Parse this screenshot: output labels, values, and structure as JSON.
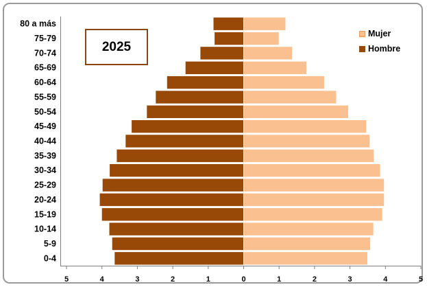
{
  "chart_data": {
    "type": "bar",
    "orientation": "horizontal-pyramid",
    "title": "2025",
    "categories": [
      "0-4",
      "5-9",
      "10-14",
      "15-19",
      "20-24",
      "25-29",
      "30-34",
      "35-39",
      "40-44",
      "45-49",
      "50-54",
      "55-59",
      "60-64",
      "65-69",
      "70-74",
      "75-79",
      "80 a más"
    ],
    "series": [
      {
        "name": "Mujer",
        "side": "right",
        "color": "#fac090",
        "values": [
          3.5,
          3.58,
          3.67,
          3.92,
          3.97,
          3.97,
          3.86,
          3.68,
          3.56,
          3.47,
          2.96,
          2.62,
          2.28,
          1.78,
          1.38,
          1.0,
          1.19
        ]
      },
      {
        "name": "Hombre",
        "side": "left",
        "color": "#984807",
        "values": [
          3.65,
          3.72,
          3.8,
          4.01,
          4.07,
          3.99,
          3.79,
          3.59,
          3.34,
          3.17,
          2.74,
          2.49,
          2.17,
          1.65,
          1.23,
          0.83,
          0.86
        ]
      }
    ],
    "xlim": [
      -5,
      5
    ],
    "xticks": [
      -5,
      -4,
      -3,
      -2,
      -1,
      0,
      1,
      2,
      3,
      4,
      5
    ],
    "xtick_labels": [
      "5",
      "4",
      "3",
      "2",
      "1",
      "0",
      "1",
      "2",
      "3",
      "4",
      "5"
    ],
    "grid": false,
    "legend_position": "top-right"
  }
}
